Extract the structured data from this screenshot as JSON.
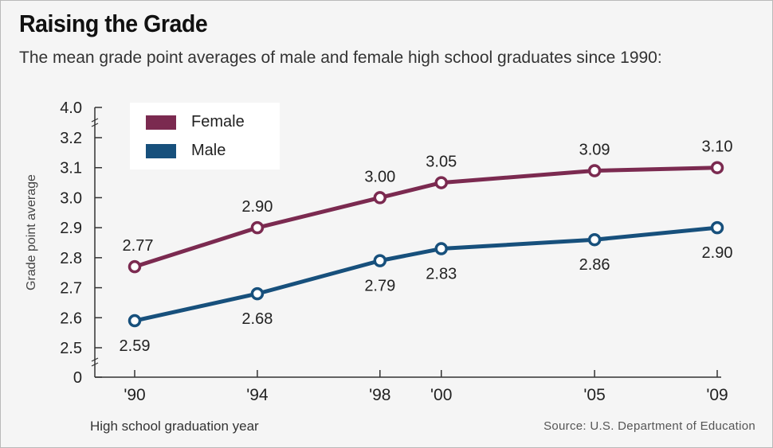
{
  "chart_data": {
    "type": "line",
    "title": "Raising the Grade",
    "subtitle": "The mean grade point averages of male and female high school graduates since 1990:",
    "xlabel": "High school graduation year",
    "ylabel": "Grade point average",
    "source": "Source: U.S. Department of Education",
    "x": [
      1990,
      1994,
      1998,
      2000,
      2005,
      2009
    ],
    "x_tick_labels": [
      "'90",
      "'94",
      "'98",
      "'00",
      "'05",
      "'09"
    ],
    "y_tick_labels": [
      "4.0",
      "3.2",
      "3.1",
      "3.0",
      "2.9",
      "2.8",
      "2.7",
      "2.6",
      "2.5",
      "0"
    ],
    "ylim": [
      2.5,
      3.2
    ],
    "y_axis_breaks": true,
    "series": [
      {
        "name": "Female",
        "color": "#7b2a50",
        "values": [
          2.77,
          2.9,
          3.0,
          3.05,
          3.09,
          3.1
        ],
        "labels": [
          "2.77",
          "2.90",
          "3.00",
          "3.05",
          "3.09",
          "3.10"
        ]
      },
      {
        "name": "Male",
        "color": "#17507c",
        "values": [
          2.59,
          2.68,
          2.79,
          2.83,
          2.86,
          2.9
        ],
        "labels": [
          "2.59",
          "2.68",
          "2.79",
          "2.83",
          "2.86",
          "2.90"
        ]
      }
    ],
    "legend_position": "top-left",
    "grid": false
  }
}
